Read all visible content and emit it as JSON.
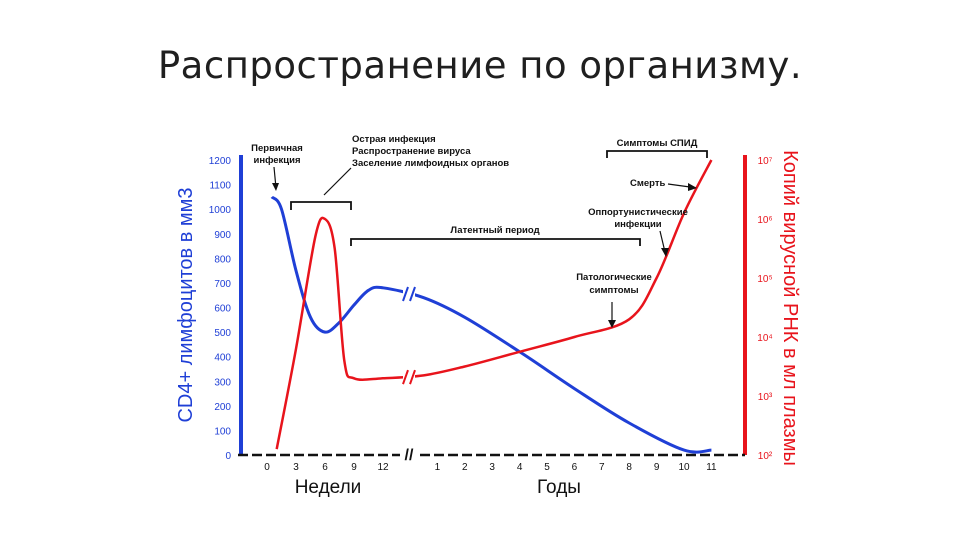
{
  "slide": {
    "title": "Распространение по организму."
  },
  "colors": {
    "cd4": "#1f3fd6",
    "rna": "#e8141c",
    "text": "#111111"
  },
  "chart_data": {
    "type": "line",
    "title": "",
    "xlabel_left": "Недели",
    "xlabel_right": "Годы",
    "ylabel_left": "CD4+ лимфоцитов в мм3",
    "ylabel_right": "Копий вирусной РНК в мл плазмы",
    "x_ticks_weeks": [
      "0",
      "3",
      "6",
      "9",
      "12"
    ],
    "x_ticks_years": [
      "1",
      "2",
      "3",
      "4",
      "5",
      "6",
      "7",
      "8",
      "9",
      "10",
      "11"
    ],
    "y_left_ticks": [
      "0",
      "100",
      "200",
      "300",
      "400",
      "500",
      "600",
      "700",
      "800",
      "900",
      "1000",
      "1100",
      "1200"
    ],
    "ylim_left": [
      0,
      1200
    ],
    "y_right_ticks": [
      "10²",
      "10³",
      "10⁴",
      "10⁵",
      "10⁶",
      "10⁷"
    ],
    "ylim_right_log10": [
      2,
      7
    ],
    "axis_break": "//",
    "series": [
      {
        "key": "cd4",
        "axis": "left",
        "points": [
          {
            "x": "0.5w",
            "y": 1050
          },
          {
            "x": "1.5w",
            "y": 1000
          },
          {
            "x": "3w",
            "y": 750
          },
          {
            "x": "4.5w",
            "y": 560
          },
          {
            "x": "6w",
            "y": 500
          },
          {
            "x": "7.5w",
            "y": 540
          },
          {
            "x": "9w",
            "y": 610
          },
          {
            "x": "10.5w",
            "y": 670
          },
          {
            "x": "12w",
            "y": 680
          },
          {
            "x": "0.5y",
            "y": 640
          },
          {
            "x": "2y",
            "y": 560
          },
          {
            "x": "4y",
            "y": 420
          },
          {
            "x": "6y",
            "y": 270
          },
          {
            "x": "8y",
            "y": 130
          },
          {
            "x": "10y",
            "y": 20
          },
          {
            "x": "11y",
            "y": 20
          }
        ]
      },
      {
        "key": "rna",
        "axis": "right",
        "points": [
          {
            "x": "1w",
            "y_log10": 2.1
          },
          {
            "x": "3w",
            "y_log10": 3.8
          },
          {
            "x": "5w",
            "y_log10": 5.7
          },
          {
            "x": "6w",
            "y_log10": 6.0
          },
          {
            "x": "7w",
            "y_log10": 5.5
          },
          {
            "x": "8w",
            "y_log10": 3.6
          },
          {
            "x": "9w",
            "y_log10": 3.3
          },
          {
            "x": "12w",
            "y_log10": 3.3
          },
          {
            "x": "0.5y",
            "y_log10": 3.35
          },
          {
            "x": "2y",
            "y_log10": 3.5
          },
          {
            "x": "4y",
            "y_log10": 3.75
          },
          {
            "x": "6y",
            "y_log10": 4.0
          },
          {
            "x": "8y",
            "y_log10": 4.3
          },
          {
            "x": "9y",
            "y_log10": 5.0
          },
          {
            "x": "10y",
            "y_log10": 6.1
          },
          {
            "x": "11y",
            "y_log10": 7.0
          }
        ]
      }
    ],
    "annotations": {
      "primary_infection": [
        "Первичная",
        "инфекция"
      ],
      "acute_infection": [
        "Острая инфекция",
        "Распространение вируса",
        "Заселение лимфоидных органов"
      ],
      "latent_period": "Латентный период",
      "aids_symptoms": "Симптомы СПИД",
      "death": "Смерть",
      "opportunistic": [
        "Оппортунистические",
        "инфекции"
      ],
      "pathological": [
        "Патологические",
        "симптомы"
      ]
    }
  }
}
